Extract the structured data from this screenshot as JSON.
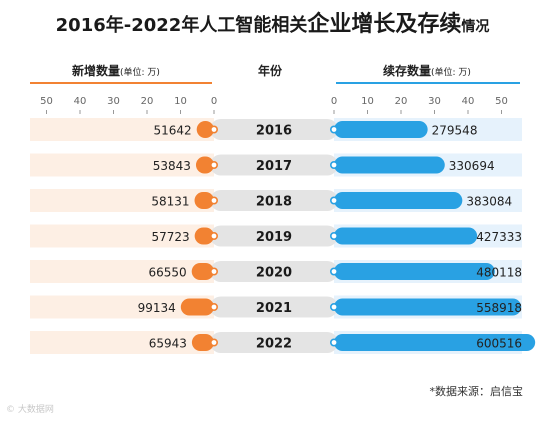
{
  "title": {
    "part1": "2016年-2022年人工智能相关",
    "part2": "企业增长及存续",
    "part3": "情况"
  },
  "headers": {
    "left": "新增数量",
    "left_unit": "(单位: 万)",
    "center": "年份",
    "right": "续存数量",
    "right_unit": "(单位: 万)"
  },
  "source": "*数据来源：启信宝",
  "watermark": "© 大数据网",
  "colors": {
    "orange": "#f28232",
    "blue": "#29a1e3",
    "left_band": "#fdefe4",
    "right_band": "#e6f2fc",
    "center_pill": "#e4e4e4"
  },
  "chart_data": {
    "type": "bar",
    "categories": [
      "2016",
      "2017",
      "2018",
      "2019",
      "2020",
      "2021",
      "2022"
    ],
    "left_axis_ticks": [
      "50",
      "40",
      "30",
      "20",
      "10",
      "0"
    ],
    "right_axis_ticks": [
      "0",
      "10",
      "20",
      "30",
      "40",
      "50"
    ],
    "series": [
      {
        "name": "新增数量",
        "values": [
          51642,
          53843,
          58131,
          57723,
          66550,
          99134,
          65943
        ]
      },
      {
        "name": "续存数量",
        "values": [
          279548,
          330694,
          383084,
          427333,
          480118,
          558918,
          600516
        ]
      }
    ]
  }
}
